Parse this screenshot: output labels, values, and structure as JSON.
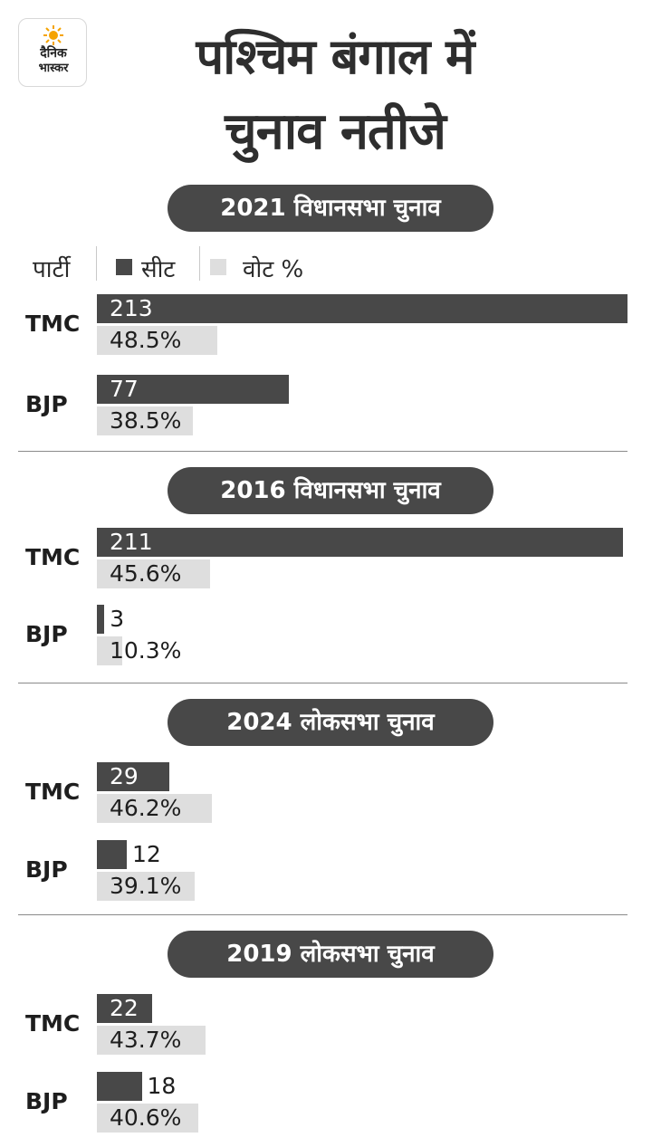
{
  "logo": {
    "line1": "दैनिक",
    "line2": "भास्कर",
    "accent": "#f5a300"
  },
  "title": {
    "line1": "पश्चिम बंगाल में",
    "line2": "चुनाव नतीजे"
  },
  "legend": {
    "party_label": "पार्टी",
    "seat_label": "सीट",
    "vote_label": "वोट %"
  },
  "colors": {
    "seat": "#484848",
    "vote": "#dedede",
    "pill": "#484848"
  },
  "chart_data": [
    {
      "type": "bar",
      "title": "2021 विधानसभा चुनाव",
      "categories": [
        "TMC",
        "BJP"
      ],
      "series": [
        {
          "name": "सीट",
          "values": [
            213,
            77
          ],
          "labels": [
            "213",
            "77"
          ]
        },
        {
          "name": "वोट %",
          "values": [
            48.5,
            38.5
          ],
          "labels": [
            "48.5%",
            "38.5%"
          ]
        }
      ]
    },
    {
      "type": "bar",
      "title": "2016 विधानसभा चुनाव",
      "categories": [
        "TMC",
        "BJP"
      ],
      "series": [
        {
          "name": "सीट",
          "values": [
            211,
            3
          ],
          "labels": [
            "211",
            "3"
          ]
        },
        {
          "name": "वोट %",
          "values": [
            45.6,
            10.3
          ],
          "labels": [
            "45.6%",
            "10.3%"
          ]
        }
      ]
    },
    {
      "type": "bar",
      "title": "2024 लोकसभा चुनाव",
      "categories": [
        "TMC",
        "BJP"
      ],
      "series": [
        {
          "name": "सीट",
          "values": [
            29,
            12
          ],
          "labels": [
            "29",
            "12"
          ]
        },
        {
          "name": "वोट %",
          "values": [
            46.2,
            39.1
          ],
          "labels": [
            "46.2%",
            "39.1%"
          ]
        }
      ]
    },
    {
      "type": "bar",
      "title": "2019 लोकसभा चुनाव",
      "categories": [
        "TMC",
        "BJP"
      ],
      "series": [
        {
          "name": "सीट",
          "values": [
            22,
            18
          ],
          "labels": [
            "22",
            "18"
          ]
        },
        {
          "name": "वोट %",
          "values": [
            43.7,
            40.6
          ],
          "labels": [
            "43.7%",
            "40.6%"
          ]
        }
      ]
    }
  ]
}
